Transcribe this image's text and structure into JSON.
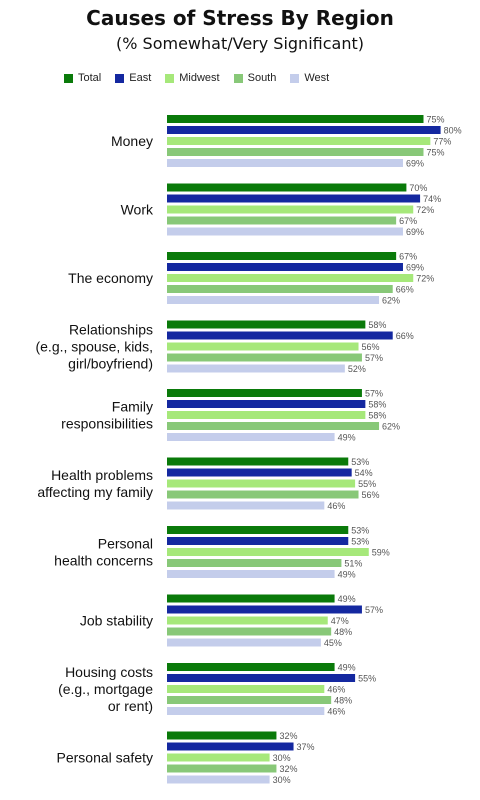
{
  "chart_data": {
    "type": "bar",
    "title": "Causes of Stress By Region",
    "subtitle": "(% Somewhat/Very Significant)",
    "series": [
      {
        "name": "Total",
        "color": "#0a7a0a",
        "values": [
          75,
          70,
          67,
          58,
          57,
          53,
          53,
          49,
          49,
          32
        ]
      },
      {
        "name": "East",
        "color": "#1428a0",
        "values": [
          80,
          74,
          69,
          66,
          58,
          54,
          53,
          57,
          55,
          37
        ]
      },
      {
        "name": "Midwest",
        "color": "#a6e87a",
        "values": [
          77,
          72,
          72,
          56,
          58,
          55,
          59,
          47,
          46,
          30
        ]
      },
      {
        "name": "South",
        "color": "#88c878",
        "values": [
          75,
          67,
          66,
          57,
          62,
          56,
          51,
          48,
          48,
          32
        ]
      },
      {
        "name": "West",
        "color": "#c4cdeb",
        "values": [
          69,
          69,
          62,
          52,
          49,
          46,
          49,
          45,
          46,
          30
        ]
      }
    ],
    "categories": [
      [
        "Money"
      ],
      [
        "Work"
      ],
      [
        "The economy"
      ],
      [
        "Relationships",
        "(e.g., spouse, kids,",
        "girl/boyfriend)"
      ],
      [
        "Family",
        "responsibilities"
      ],
      [
        "Health problems",
        "affecting my family"
      ],
      [
        "Personal",
        "health concerns"
      ],
      [
        "Job stability"
      ],
      [
        "Housing costs",
        "(e.g., mortgage",
        "or rent)"
      ],
      [
        "Personal safety"
      ]
    ],
    "value_suffix": "%",
    "orientation": "horizontal",
    "legend_position": "top",
    "grid": false
  }
}
